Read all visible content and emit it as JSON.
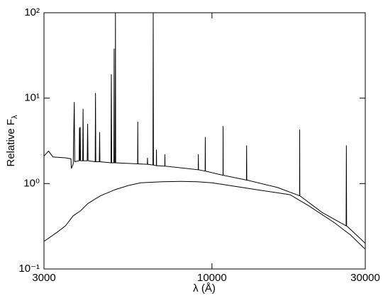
{
  "chart_data": {
    "type": "line",
    "xlabel": "λ (Å)",
    "ylabel": "Relative F",
    "ylabel_subscript": "λ",
    "xscale": "log",
    "yscale": "log",
    "xlim": [
      3000,
      30000
    ],
    "ylim": [
      0.1,
      100
    ],
    "xticks": [
      3000,
      10000,
      30000
    ],
    "yticks": [
      {
        "value": 0.1,
        "label": "10⁻¹"
      },
      {
        "value": 1,
        "label": "10⁰"
      },
      {
        "value": 10,
        "label": "10¹"
      },
      {
        "value": 100,
        "label": "10²"
      }
    ],
    "series": [
      {
        "color": "#000000",
        "x": [
          3000,
          3100,
          3200,
          3500,
          3640,
          3650,
          3700,
          3727,
          3740,
          3860,
          3869,
          3880,
          3889,
          3900,
          3960,
          3970,
          3980,
          4090,
          4102,
          4115,
          4330,
          4340,
          4350,
          4460,
          4471,
          4480,
          4850,
          4861,
          4875,
          4950,
          4959,
          4968,
          4998,
          5007,
          5016,
          5870,
          5876,
          5885,
          6290,
          6300,
          6310,
          6550,
          6563,
          6576,
          6710,
          6717,
          6725,
          7130,
          7136,
          7145,
          9060,
          9069,
          9080,
          9520,
          9532,
          9545,
          10820,
          10830,
          10840,
          12800,
          12818,
          12835,
          16000,
          18730,
          18751,
          18770,
          22000,
          26150,
          26200,
          26250,
          30000
        ],
        "values": [
          2.1,
          2.4,
          2.05,
          2.0,
          1.95,
          1.5,
          1.7,
          9,
          1.8,
          1.85,
          4.5,
          1.85,
          4.6,
          1.85,
          1.85,
          7.5,
          1.85,
          1.85,
          5,
          1.85,
          1.8,
          11.5,
          1.8,
          1.8,
          4,
          1.8,
          1.75,
          19,
          1.75,
          1.75,
          38,
          1.75,
          1.75,
          100,
          1.75,
          1.7,
          5.3,
          1.7,
          1.68,
          2.0,
          1.68,
          1.65,
          100,
          1.65,
          1.62,
          2.5,
          1.62,
          1.6,
          2.2,
          1.6,
          1.45,
          2.2,
          1.45,
          1.4,
          3.5,
          1.4,
          1.25,
          4.7,
          1.25,
          1.1,
          2.8,
          1.1,
          0.9,
          0.72,
          4.3,
          0.72,
          0.46,
          0.32,
          2.8,
          0.32,
          0.2
        ]
      },
      {
        "color": "#000000",
        "x": [
          3000,
          3300,
          3500,
          3700,
          3900,
          4100,
          4300,
          4500,
          5000,
          5500,
          6000,
          7000,
          8000,
          9000,
          10000,
          12000,
          14000,
          16000,
          17500,
          20000,
          24000,
          27000,
          30000
        ],
        "values": [
          0.21,
          0.27,
          0.32,
          0.42,
          0.48,
          0.58,
          0.65,
          0.72,
          0.85,
          0.95,
          1.02,
          1.05,
          1.06,
          1.05,
          1.02,
          0.92,
          0.84,
          0.78,
          0.74,
          0.55,
          0.35,
          0.25,
          0.17
        ]
      }
    ]
  }
}
